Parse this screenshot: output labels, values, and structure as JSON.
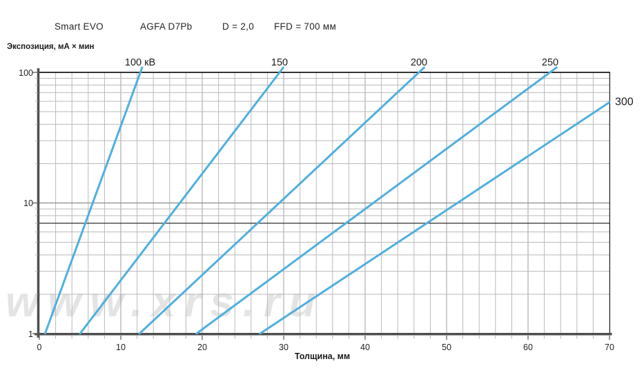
{
  "header": {
    "device": "Smart EVO",
    "film": "AGFA D7Pb",
    "density": "D = 2,0",
    "ffd": "FFD = 700 мм"
  },
  "watermark": "www.xrs.ru",
  "colors": {
    "curve": "#4fafdf",
    "grid_minor": "#b9b9b9",
    "grid_major": "#9e9e9e",
    "grid_decade": "#8a8a8a",
    "reference_line": "#2b2b2b",
    "border": "#161616",
    "axis": "#4e4e4e",
    "tick_minor": "#b0b0b0",
    "tick_major": "#6f6f6f",
    "text": "#1f1f1f"
  },
  "chart_data": {
    "type": "line",
    "title": "Exposure chart Smart EVO, AGFA D7Pb, D = 2,0, FFD = 700 мм",
    "x_scale": "linear",
    "y_scale": "log",
    "xlabel": "Толщина, мм",
    "ylabel": "Экспозиция, мА × мин",
    "xlim": [
      0,
      70
    ],
    "ylim": [
      1,
      100
    ],
    "x_ticks": [
      0,
      10,
      20,
      30,
      40,
      50,
      60,
      70
    ],
    "x_minor_step": 2,
    "y_ticks": [
      1,
      10,
      100
    ],
    "grid": true,
    "legend_position": "labels-on-lines",
    "reference_line_value": 7,
    "series": [
      {
        "name": "100 кВ",
        "kv": 100,
        "label_position": "top",
        "points": [
          [
            0.7,
            1
          ],
          [
            12.4,
            100
          ]
        ]
      },
      {
        "name": "150",
        "kv": 150,
        "label_position": "top",
        "points": [
          [
            5.0,
            1
          ],
          [
            29.5,
            100
          ]
        ]
      },
      {
        "name": "200",
        "kv": 200,
        "label_position": "top",
        "points": [
          [
            12.3,
            1
          ],
          [
            46.6,
            100
          ]
        ]
      },
      {
        "name": "250",
        "kv": 250,
        "label_position": "top",
        "points": [
          [
            19.3,
            1
          ],
          [
            62.7,
            100
          ]
        ]
      },
      {
        "name": "300",
        "kv": 300,
        "label_position": "right",
        "points": [
          [
            27.1,
            1
          ],
          [
            70,
            59
          ]
        ]
      }
    ]
  }
}
